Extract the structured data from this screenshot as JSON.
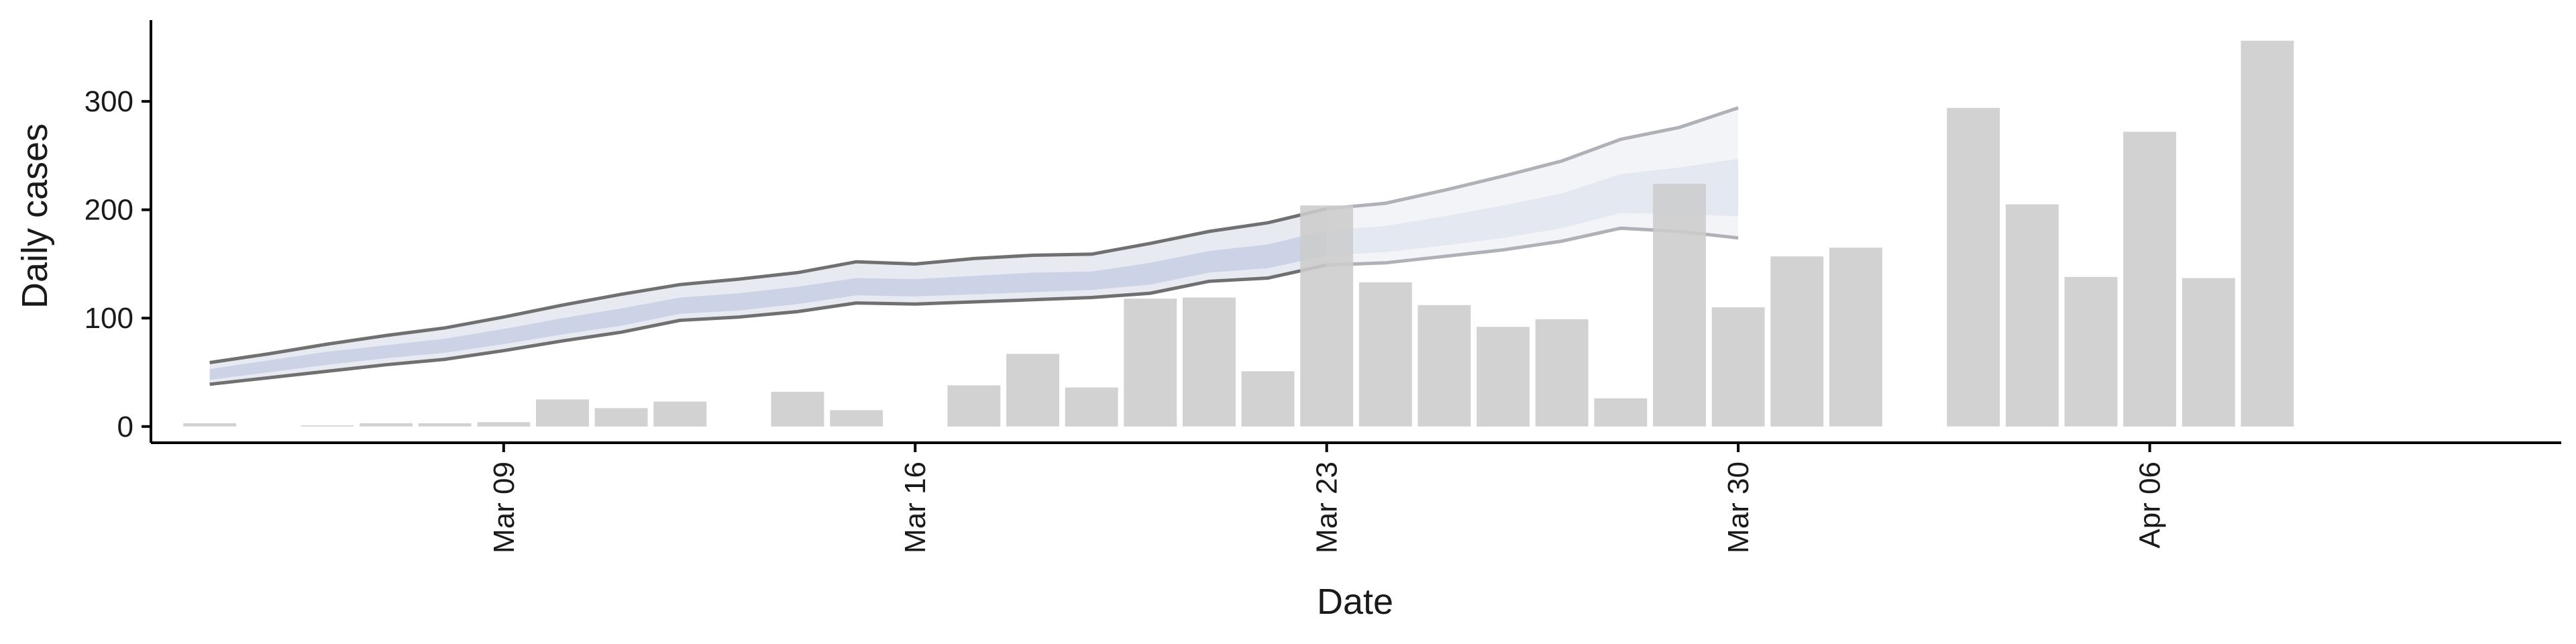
{
  "chart_data": {
    "type": "bar",
    "xlabel": "Date",
    "ylabel": "Daily cases",
    "ylim": [
      -15,
      375
    ],
    "yticks": [
      0,
      100,
      200,
      300
    ],
    "xlim": [
      "2020-03-03",
      "2020-04-13"
    ],
    "xticks": [
      {
        "date": "2020-03-09",
        "label": "Mar 09"
      },
      {
        "date": "2020-03-16",
        "label": "Mar 16"
      },
      {
        "date": "2020-03-23",
        "label": "Mar 23"
      },
      {
        "date": "2020-03-30",
        "label": "Mar 30"
      },
      {
        "date": "2020-04-06",
        "label": "Apr 06"
      }
    ],
    "grid": false,
    "legend": "none",
    "colors": {
      "bars": "#cccccc",
      "interval_lines": "#707070",
      "forecast_lines": "#b0b0b8",
      "band_outer": "#e4e6f0",
      "band_inner": "#c9d0e4",
      "axis": "#000000"
    },
    "bars": [
      {
        "date": "2020-03-04",
        "value": 3
      },
      {
        "date": "2020-03-06",
        "value": 1
      },
      {
        "date": "2020-03-07",
        "value": 3
      },
      {
        "date": "2020-03-08",
        "value": 3
      },
      {
        "date": "2020-03-09",
        "value": 4
      },
      {
        "date": "2020-03-10",
        "value": 25
      },
      {
        "date": "2020-03-11",
        "value": 17
      },
      {
        "date": "2020-03-12",
        "value": 23
      },
      {
        "date": "2020-03-14",
        "value": 32
      },
      {
        "date": "2020-03-15",
        "value": 15
      },
      {
        "date": "2020-03-17",
        "value": 38
      },
      {
        "date": "2020-03-18",
        "value": 67
      },
      {
        "date": "2020-03-19",
        "value": 36
      },
      {
        "date": "2020-03-20",
        "value": 118
      },
      {
        "date": "2020-03-21",
        "value": 119
      },
      {
        "date": "2020-03-22",
        "value": 51
      },
      {
        "date": "2020-03-23",
        "value": 204
      },
      {
        "date": "2020-03-24",
        "value": 133
      },
      {
        "date": "2020-03-25",
        "value": 112
      },
      {
        "date": "2020-03-26",
        "value": 92
      },
      {
        "date": "2020-03-27",
        "value": 99
      },
      {
        "date": "2020-03-28",
        "value": 26
      },
      {
        "date": "2020-03-29",
        "value": 224
      },
      {
        "date": "2020-03-30",
        "value": 110
      },
      {
        "date": "2020-03-31",
        "value": 157
      },
      {
        "date": "2020-04-01",
        "value": 165
      },
      {
        "date": "2020-04-03",
        "value": 294
      },
      {
        "date": "2020-04-04",
        "value": 205
      },
      {
        "date": "2020-04-05",
        "value": 138
      },
      {
        "date": "2020-04-06",
        "value": 272
      },
      {
        "date": "2020-04-07",
        "value": 137
      },
      {
        "date": "2020-04-08",
        "value": 356
      }
    ],
    "estimate": [
      {
        "date": "2020-03-04",
        "lower": 39,
        "upper": 59,
        "inner_lower": 43,
        "inner_upper": 53,
        "median": 48
      },
      {
        "date": "2020-03-05",
        "lower": 45,
        "upper": 67,
        "inner_lower": 50,
        "inner_upper": 61,
        "median": 56
      },
      {
        "date": "2020-03-06",
        "lower": 51,
        "upper": 76,
        "inner_lower": 57,
        "inner_upper": 69,
        "median": 63
      },
      {
        "date": "2020-03-07",
        "lower": 57,
        "upper": 84,
        "inner_lower": 63,
        "inner_upper": 75,
        "median": 69
      },
      {
        "date": "2020-03-08",
        "lower": 62,
        "upper": 91,
        "inner_lower": 68,
        "inner_upper": 81,
        "median": 74
      },
      {
        "date": "2020-03-09",
        "lower": 70,
        "upper": 101,
        "inner_lower": 76,
        "inner_upper": 90,
        "median": 83
      },
      {
        "date": "2020-03-10",
        "lower": 79,
        "upper": 112,
        "inner_lower": 85,
        "inner_upper": 100,
        "median": 92
      },
      {
        "date": "2020-03-11",
        "lower": 87,
        "upper": 122,
        "inner_lower": 93,
        "inner_upper": 109,
        "median": 101
      },
      {
        "date": "2020-03-12",
        "lower": 98,
        "upper": 131,
        "inner_lower": 104,
        "inner_upper": 119,
        "median": 111
      },
      {
        "date": "2020-03-13",
        "lower": 101,
        "upper": 136,
        "inner_lower": 107,
        "inner_upper": 123,
        "median": 115
      },
      {
        "date": "2020-03-14",
        "lower": 106,
        "upper": 142,
        "inner_lower": 113,
        "inner_upper": 129,
        "median": 121
      },
      {
        "date": "2020-03-15",
        "lower": 114,
        "upper": 152,
        "inner_lower": 121,
        "inner_upper": 137,
        "median": 129
      },
      {
        "date": "2020-03-16",
        "lower": 113,
        "upper": 150,
        "inner_lower": 120,
        "inner_upper": 136,
        "median": 128
      },
      {
        "date": "2020-03-17",
        "lower": 115,
        "upper": 155,
        "inner_lower": 122,
        "inner_upper": 139,
        "median": 131
      },
      {
        "date": "2020-03-18",
        "lower": 117,
        "upper": 158,
        "inner_lower": 124,
        "inner_upper": 142,
        "median": 133
      },
      {
        "date": "2020-03-19",
        "lower": 119,
        "upper": 159,
        "inner_lower": 126,
        "inner_upper": 143,
        "median": 135
      },
      {
        "date": "2020-03-20",
        "lower": 123,
        "upper": 169,
        "inner_lower": 131,
        "inner_upper": 151,
        "median": 141
      },
      {
        "date": "2020-03-21",
        "lower": 134,
        "upper": 180,
        "inner_lower": 142,
        "inner_upper": 162,
        "median": 152
      },
      {
        "date": "2020-03-22",
        "lower": 137,
        "upper": 188,
        "inner_lower": 146,
        "inner_upper": 168,
        "median": 157
      },
      {
        "date": "2020-03-23",
        "lower": 149,
        "upper": 201,
        "inner_lower": 158,
        "inner_upper": 181,
        "median": 170
      }
    ],
    "forecast": [
      {
        "date": "2020-03-23",
        "lower": 149,
        "upper": 201,
        "inner_lower": 158,
        "inner_upper": 181,
        "median": 170
      },
      {
        "date": "2020-03-24",
        "lower": 151,
        "upper": 206,
        "inner_lower": 161,
        "inner_upper": 185,
        "median": 173
      },
      {
        "date": "2020-03-25",
        "lower": 157,
        "upper": 218,
        "inner_lower": 167,
        "inner_upper": 194,
        "median": 181
      },
      {
        "date": "2020-03-26",
        "lower": 163,
        "upper": 231,
        "inner_lower": 174,
        "inner_upper": 204,
        "median": 189
      },
      {
        "date": "2020-03-27",
        "lower": 171,
        "upper": 245,
        "inner_lower": 183,
        "inner_upper": 215,
        "median": 199
      },
      {
        "date": "2020-03-28",
        "lower": 183,
        "upper": 265,
        "inner_lower": 197,
        "inner_upper": 233,
        "median": 215
      },
      {
        "date": "2020-03-29",
        "lower": 180,
        "upper": 276,
        "inner_lower": 196,
        "inner_upper": 239,
        "median": 217
      },
      {
        "date": "2020-03-30",
        "lower": 174,
        "upper": 294,
        "inner_lower": 194,
        "inner_upper": 247,
        "median": 220
      }
    ]
  }
}
